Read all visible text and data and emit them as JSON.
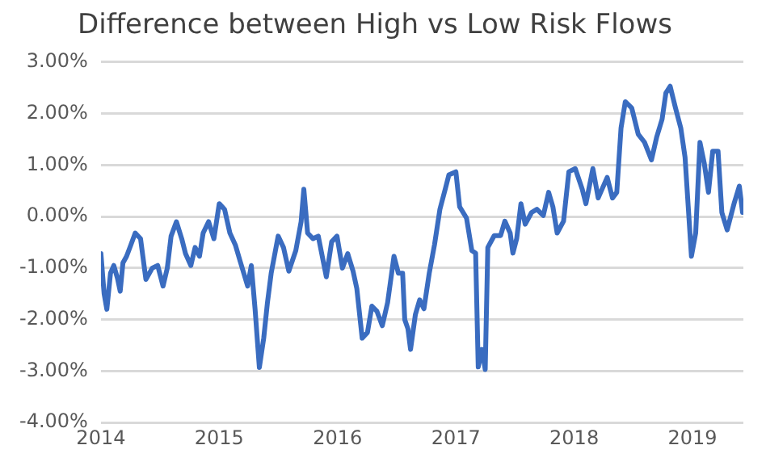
{
  "chart_data": {
    "type": "line",
    "title": "Difference between High vs Low Risk Flows",
    "x": [
      2014.0,
      2014.027,
      2014.05,
      2014.081,
      2014.109,
      2014.14,
      2014.163,
      2014.186,
      2014.217,
      2014.253,
      2014.29,
      2014.335,
      2014.38,
      2014.434,
      2014.48,
      2014.525,
      2014.561,
      2014.593,
      2014.638,
      2014.683,
      2014.715,
      2014.76,
      2014.796,
      2014.833,
      2014.864,
      2014.91,
      2014.955,
      2015.0,
      2015.045,
      2015.09,
      2015.136,
      2015.181,
      2015.24,
      2015.271,
      2015.303,
      2015.339,
      2015.376,
      2015.407,
      2015.439,
      2015.498,
      2015.543,
      2015.588,
      2015.647,
      2015.692,
      2015.715,
      2015.747,
      2015.792,
      2015.837,
      2015.905,
      2015.95,
      2015.995,
      2016.041,
      2016.086,
      2016.131,
      2016.163,
      2016.208,
      2016.253,
      2016.29,
      2016.333,
      2016.378,
      2016.423,
      2016.477,
      2016.514,
      2016.55,
      2016.568,
      2016.595,
      2016.617,
      2016.658,
      2016.694,
      2016.73,
      2016.775,
      2016.82,
      2016.865,
      2016.91,
      2016.941,
      2017.0,
      2017.032,
      2017.09,
      2017.135,
      2017.167,
      2017.189,
      2017.221,
      2017.248,
      2017.27,
      2017.324,
      2017.378,
      2017.414,
      2017.459,
      2017.482,
      2017.514,
      2017.55,
      2017.586,
      2017.64,
      2017.685,
      2017.739,
      2017.784,
      2017.82,
      2017.856,
      2017.91,
      2017.955,
      2018.009,
      2018.068,
      2018.099,
      2018.158,
      2018.203,
      2018.279,
      2018.324,
      2018.36,
      2018.396,
      2018.432,
      2018.486,
      2018.541,
      2018.595,
      2018.653,
      2018.698,
      2018.743,
      2018.775,
      2018.811,
      2018.856,
      2018.901,
      2018.937,
      2018.991,
      2019.027,
      2019.063,
      2019.099,
      2019.135,
      2019.171,
      2019.216,
      2019.248,
      2019.293,
      2019.351,
      2019.396,
      2019.423
    ],
    "series": [
      {
        "color": "#3a6cc0",
        "values": [
          -0.72,
          -1.5,
          -1.8,
          -1.1,
          -0.95,
          -1.2,
          -1.45,
          -0.9,
          -0.77,
          -0.55,
          -0.32,
          -0.43,
          -1.22,
          -1.0,
          -0.95,
          -1.35,
          -1.0,
          -0.38,
          -0.1,
          -0.43,
          -0.72,
          -0.95,
          -0.6,
          -0.77,
          -0.32,
          -0.1,
          -0.43,
          0.25,
          0.14,
          -0.32,
          -0.55,
          -0.9,
          -1.35,
          -0.95,
          -1.8,
          -2.93,
          -2.36,
          -1.68,
          -1.1,
          -0.38,
          -0.6,
          -1.06,
          -0.66,
          -0.1,
          0.53,
          -0.32,
          -0.43,
          -0.38,
          -1.17,
          -0.49,
          -0.38,
          -1.0,
          -0.72,
          -1.06,
          -1.4,
          -2.36,
          -2.25,
          -1.74,
          -1.84,
          -2.12,
          -1.67,
          -0.77,
          -1.1,
          -1.1,
          -2.0,
          -2.18,
          -2.58,
          -1.9,
          -1.62,
          -1.79,
          -1.1,
          -0.54,
          0.14,
          0.53,
          0.81,
          0.87,
          0.19,
          -0.03,
          -0.66,
          -0.71,
          -2.92,
          -2.58,
          -2.97,
          -0.6,
          -0.37,
          -0.37,
          -0.09,
          -0.32,
          -0.71,
          -0.43,
          0.25,
          -0.15,
          0.08,
          0.14,
          0.02,
          0.47,
          0.19,
          -0.32,
          -0.09,
          0.87,
          0.93,
          0.53,
          0.25,
          0.93,
          0.36,
          0.76,
          0.36,
          0.47,
          1.72,
          2.23,
          2.11,
          1.6,
          1.44,
          1.1,
          1.55,
          1.89,
          2.4,
          2.53,
          2.11,
          1.72,
          1.15,
          -0.77,
          -0.32,
          1.44,
          1.04,
          0.47,
          1.27,
          1.27,
          0.08,
          -0.26,
          0.25,
          0.59,
          0.08
        ]
      }
    ],
    "xlim": [
      2014,
      2019.43
    ],
    "xticks": [
      2014,
      2015,
      2016,
      2017,
      2018,
      2019
    ],
    "ylim": [
      -4,
      3
    ],
    "yticks": [
      {
        "value": -4,
        "label": "-4.00%"
      },
      {
        "value": -3,
        "label": "-3.00%"
      },
      {
        "value": -2,
        "label": "-2.00%"
      },
      {
        "value": -1,
        "label": "-1.00%"
      },
      {
        "value": 0,
        "label": "0.00%"
      },
      {
        "value": 1,
        "label": "1.00%"
      },
      {
        "value": 2,
        "label": "2.00%"
      },
      {
        "value": 3,
        "label": "3.00%"
      }
    ],
    "grid": "y",
    "legend": false,
    "marker": "none",
    "line_style": "solid"
  }
}
